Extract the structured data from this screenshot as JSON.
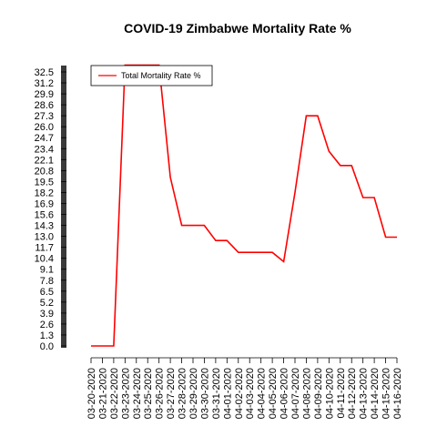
{
  "chart_data": {
    "type": "line",
    "title": "COVID-19 Zimbabwe Mortality Rate %",
    "xlabel": "",
    "ylabel": "",
    "legend": {
      "position": "top-left"
    },
    "grid": false,
    "y_ticks": [
      "0.0",
      "1.3",
      "2.6",
      "3.9",
      "5.2",
      "6.5",
      "7.8",
      "9.1",
      "10.4",
      "11.7",
      "13.0",
      "14.3",
      "15.6",
      "16.9",
      "18.2",
      "19.5",
      "20.8",
      "22.1",
      "23.4",
      "24.7",
      "26.0",
      "27.3",
      "28.6",
      "29.9",
      "31.2",
      "32.5"
    ],
    "ylim": [
      0,
      32.5
    ],
    "categories": [
      "03-20-2020",
      "03-21-2020",
      "03-22-2020",
      "03-23-2020",
      "03-24-2020",
      "03-25-2020",
      "03-26-2020",
      "03-27-2020",
      "03-28-2020",
      "03-29-2020",
      "03-30-2020",
      "03-31-2020",
      "04-01-2020",
      "04-02-2020",
      "04-03-2020",
      "04-04-2020",
      "04-05-2020",
      "04-06-2020",
      "04-07-2020",
      "04-08-2020",
      "04-09-2020",
      "04-10-2020",
      "04-11-2020",
      "04-12-2020",
      "04-13-2020",
      "04-14-2020",
      "04-15-2020",
      "04-16-2020"
    ],
    "series": [
      {
        "name": "Total Mortality Rate %",
        "color": "#ff0000",
        "values": [
          0.0,
          0.0,
          0.0,
          33.3,
          33.3,
          33.3,
          33.3,
          20.0,
          14.3,
          14.3,
          14.3,
          12.5,
          12.5,
          11.1,
          11.1,
          11.1,
          11.1,
          10.0,
          18.2,
          27.3,
          27.3,
          23.1,
          21.4,
          21.4,
          17.6,
          17.6,
          12.9,
          12.9
        ]
      }
    ]
  }
}
